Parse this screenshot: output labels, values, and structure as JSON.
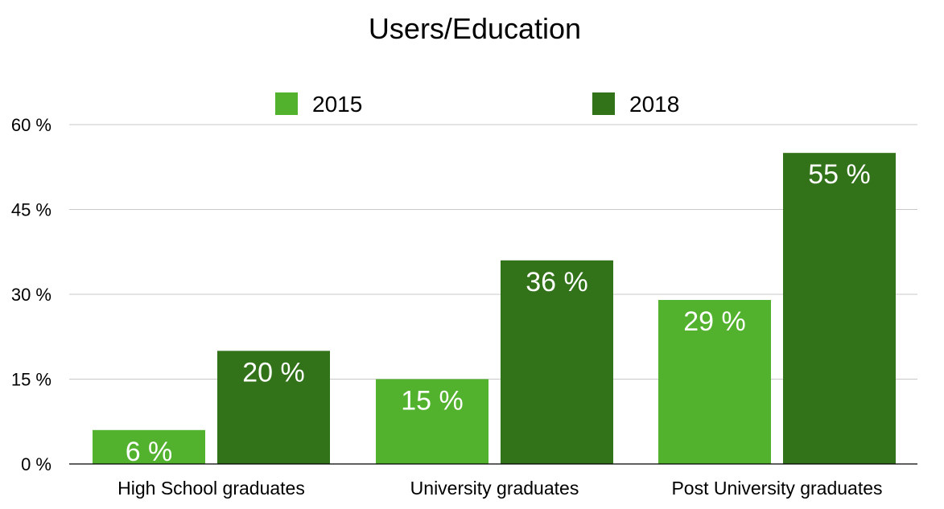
{
  "chart_data": {
    "type": "bar",
    "title": "Users/Education",
    "categories": [
      "High School graduates",
      "University graduates",
      "Post University graduates"
    ],
    "series": [
      {
        "name": "2015",
        "values": [
          6,
          15,
          29
        ],
        "labels": [
          "6 %",
          "15 %",
          "29 %"
        ],
        "color": "#52b12d"
      },
      {
        "name": "2018",
        "values": [
          20,
          36,
          55
        ],
        "labels": [
          "20 %",
          "36 %",
          "55 %"
        ],
        "color": "#327219"
      }
    ],
    "yticks": [
      0,
      15,
      30,
      45,
      60
    ],
    "ytick_labels": [
      "0 %",
      "15 %",
      "30 %",
      "45 %",
      "60 %"
    ],
    "ylim": [
      0,
      60
    ],
    "xlabel": "",
    "ylabel": "",
    "grid": true,
    "legend_position": "top"
  }
}
